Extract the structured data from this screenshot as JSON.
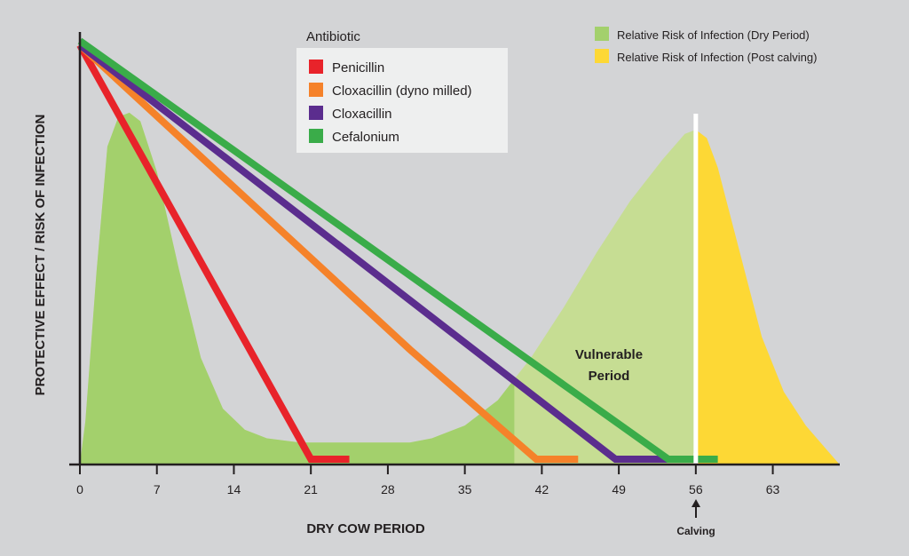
{
  "chart_data": {
    "type": "line",
    "xlabel": "DRY COW PERIOD",
    "ylabel": "PROTECTIVE EFFECT / RISK OF INFECTION",
    "xlim": [
      0,
      70
    ],
    "ylim": [
      0,
      100
    ],
    "xticks": [
      0,
      7,
      14,
      21,
      28,
      35,
      42,
      49,
      56,
      63
    ],
    "grid": false,
    "legend_title": "Antibiotic",
    "legend_position": "top-center",
    "series": [
      {
        "name": "Penicillin",
        "color": "#e8232a",
        "points": [
          [
            0,
            99
          ],
          [
            21,
            0
          ],
          [
            24.5,
            0
          ]
        ]
      },
      {
        "name": "Cloxacillin (dyno milled)",
        "color": "#f5822a",
        "points": [
          [
            0,
            99
          ],
          [
            10,
            75
          ],
          [
            20,
            51
          ],
          [
            30,
            27
          ],
          [
            41.5,
            0
          ],
          [
            45.3,
            0
          ]
        ]
      },
      {
        "name": "Cloxacillin",
        "color": "#5b2d8e",
        "points": [
          [
            0,
            99
          ],
          [
            48.7,
            0
          ],
          [
            55.5,
            0
          ]
        ]
      },
      {
        "name": "Cefalonium",
        "color": "#3aac49",
        "points": [
          [
            0,
            100
          ],
          [
            53.5,
            0
          ],
          [
            58,
            0
          ]
        ]
      }
    ],
    "areas": [
      {
        "name": "Relative Risk of Infection (Dry Period)",
        "color": "#a3d06c",
        "light_color": "#c6dd93",
        "points": [
          [
            0,
            0
          ],
          [
            0.5,
            10
          ],
          [
            1.5,
            45
          ],
          [
            2.5,
            75
          ],
          [
            3.5,
            82
          ],
          [
            4.5,
            83
          ],
          [
            5.5,
            81
          ],
          [
            7,
            69
          ],
          [
            9,
            46
          ],
          [
            11,
            25
          ],
          [
            13,
            13
          ],
          [
            15,
            8
          ],
          [
            17,
            6
          ],
          [
            20,
            5
          ],
          [
            25,
            5
          ],
          [
            30,
            5
          ],
          [
            32,
            6
          ],
          [
            35,
            9
          ],
          [
            38,
            15
          ],
          [
            41,
            25
          ],
          [
            44,
            37
          ],
          [
            47,
            50
          ],
          [
            50,
            62
          ],
          [
            53,
            72
          ],
          [
            55,
            78
          ],
          [
            56,
            79
          ]
        ]
      },
      {
        "name": "Relative Risk of Infection (Post calving)",
        "color": "#fdd835",
        "points": [
          [
            56,
            79
          ],
          [
            57,
            77
          ],
          [
            58,
            70
          ],
          [
            60,
            50
          ],
          [
            62,
            30
          ],
          [
            64,
            17
          ],
          [
            66,
            9
          ],
          [
            68,
            3
          ],
          [
            69,
            0
          ]
        ]
      }
    ],
    "annotations": {
      "vulnerable": [
        "Vulnerable",
        "Period"
      ],
      "calving_label": "Calving",
      "calving_day": 56
    }
  }
}
